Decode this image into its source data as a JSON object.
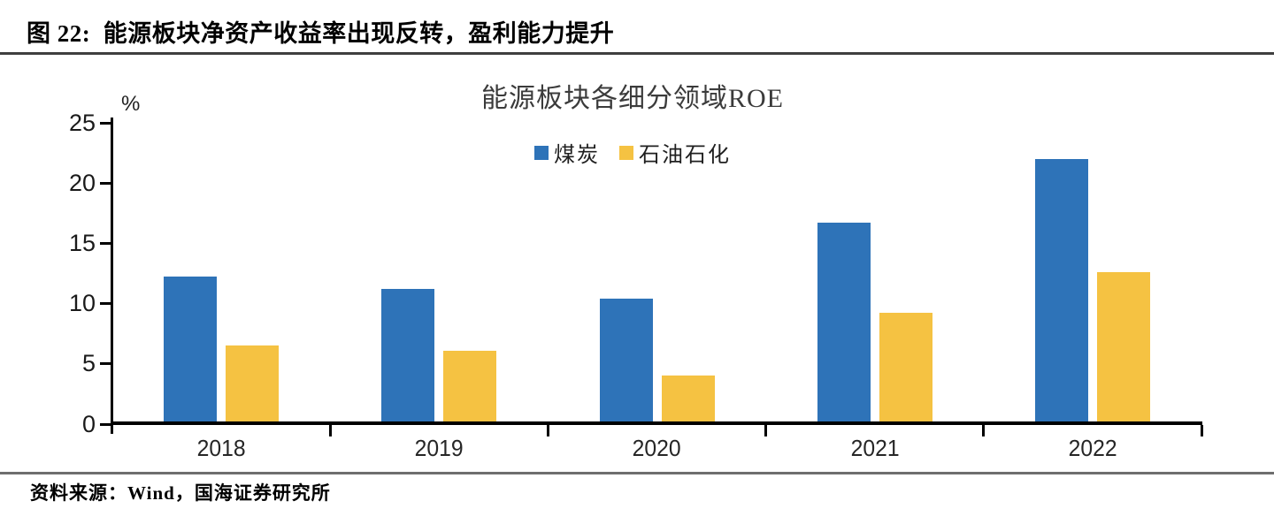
{
  "header": {
    "title": "图 22:  能源板块净资产收益率出现反转，盈利能力提升"
  },
  "footer": {
    "source": "资料来源：Wind，国海证券研究所"
  },
  "chart_data": {
    "type": "bar",
    "title": "能源板块各细分领域ROE",
    "unit_label": "%",
    "categories": [
      "2018",
      "2019",
      "2020",
      "2021",
      "2022"
    ],
    "series": [
      {
        "id": "coal",
        "name": "煤炭",
        "color": "#2E73B8",
        "values": [
          12.0,
          11.0,
          10.2,
          16.5,
          21.8
        ]
      },
      {
        "id": "oil-petrochem",
        "name": "石油石化",
        "color": "#F5C242",
        "values": [
          6.3,
          5.9,
          3.8,
          9.0,
          12.4
        ]
      }
    ],
    "xlabel": "",
    "ylabel": "%",
    "ylim": [
      0,
      25
    ],
    "yticks": [
      0,
      5,
      10,
      15,
      20,
      25
    ],
    "grid": false,
    "legend_position": "top-center"
  }
}
